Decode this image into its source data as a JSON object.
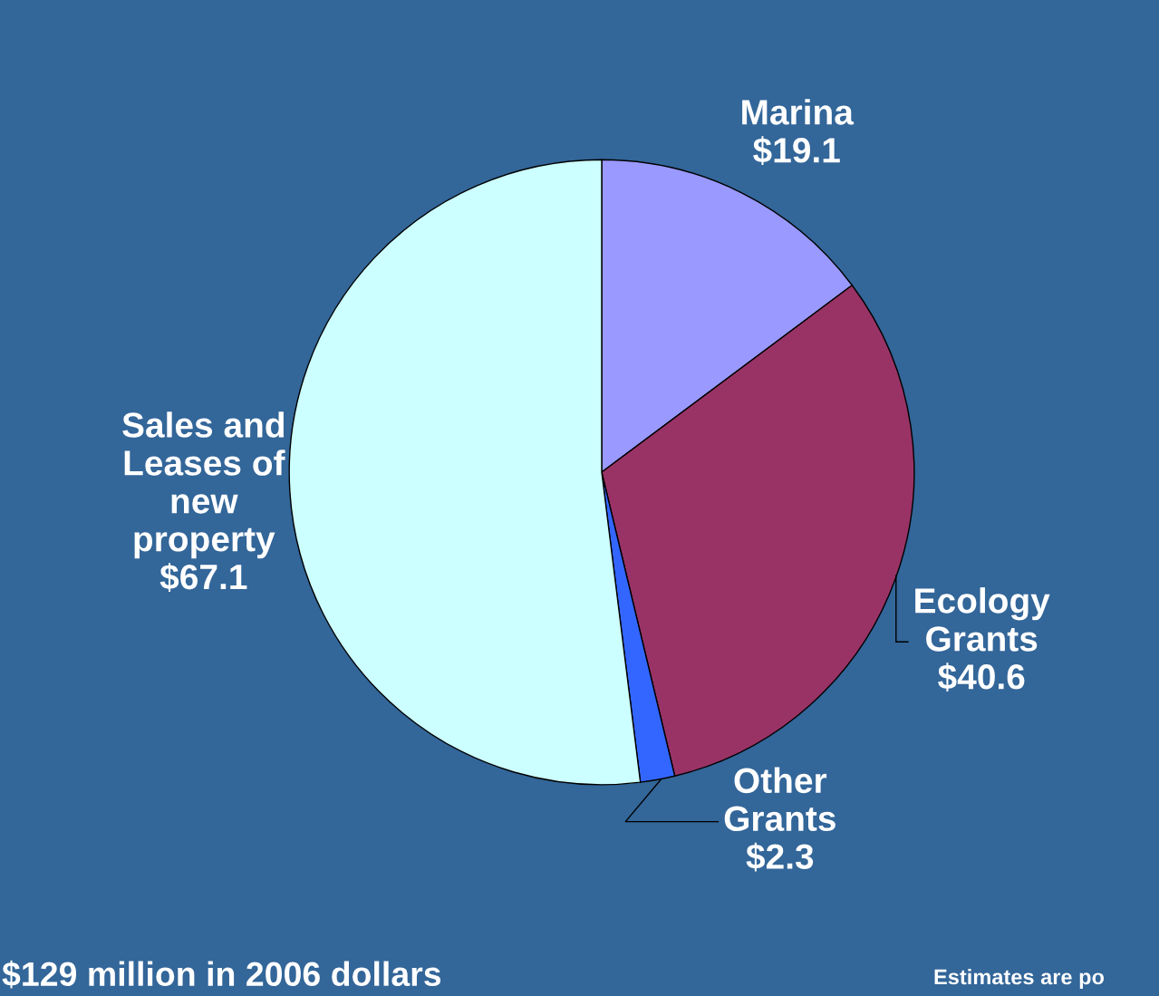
{
  "chart_data": {
    "type": "pie",
    "categories": [
      "Marina",
      "Ecology\nGrants",
      "Other\nGrants",
      "Sales and\nLeases of\nnew\nproperty"
    ],
    "values": [
      19.1,
      40.6,
      2.3,
      67.1
    ],
    "value_labels": [
      "$19.1",
      "$40.6",
      "$2.3",
      "$67.1"
    ],
    "colors": [
      "#9999ff",
      "#993366",
      "#3366ff",
      "#ccffff"
    ],
    "annotations": [
      "$129 million in 2006 dollars",
      "Estimates are po"
    ],
    "legend": false
  }
}
